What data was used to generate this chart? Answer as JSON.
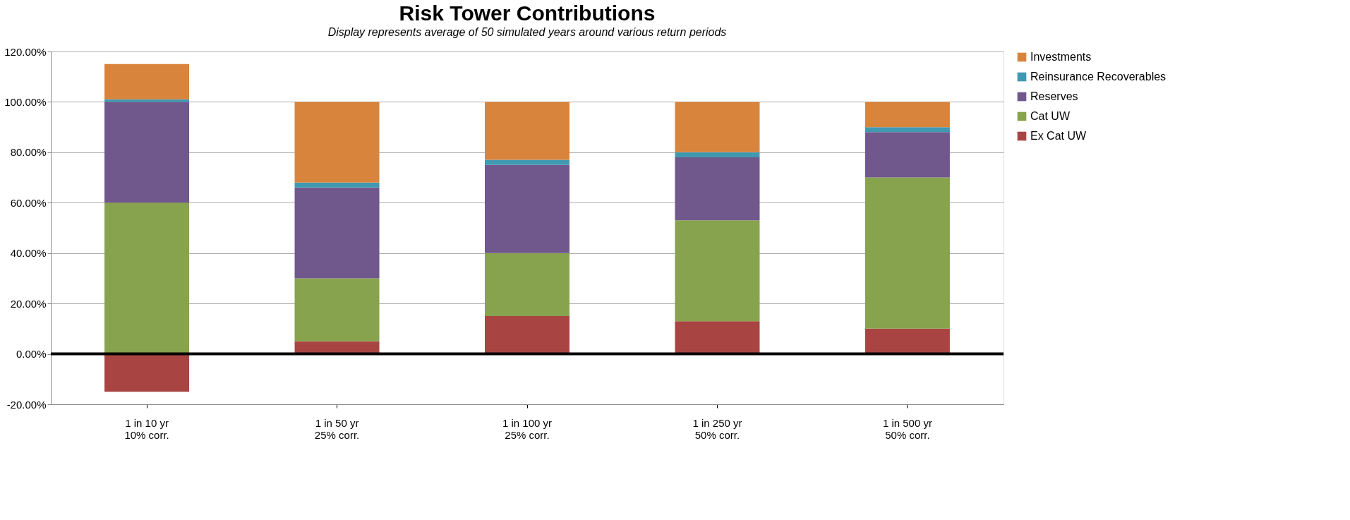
{
  "chart_data": {
    "type": "bar",
    "stacked": true,
    "title": "Risk Tower Contributions",
    "subtitle": "Display represents average of 50 simulated years around various return periods",
    "categories": [
      "1 in 10 yr\n10% corr.",
      "1 in 50 yr\n25% corr.",
      "1 in 100 yr\n25% corr.",
      "1 in 250 yr\n50% corr.",
      "1 in 500 yr\n50% corr."
    ],
    "series": [
      {
        "name": "Ex Cat UW",
        "color": "#a84543",
        "values": [
          -15,
          5,
          15,
          13,
          10
        ]
      },
      {
        "name": "Cat UW",
        "color": "#87a34d",
        "values": [
          60,
          25,
          25,
          40,
          60
        ]
      },
      {
        "name": "Reserves",
        "color": "#70578c",
        "values": [
          40,
          36,
          35,
          25,
          18
        ]
      },
      {
        "name": "Reinsurance Recoverables",
        "color": "#4099b0",
        "values": [
          1,
          2,
          2,
          2,
          2
        ]
      },
      {
        "name": "Investments",
        "color": "#d9843d",
        "values": [
          14,
          32,
          23,
          20,
          10
        ]
      }
    ],
    "ylim": [
      -20,
      120
    ],
    "yticks": [
      {
        "value": -20,
        "label": "-20.00%"
      },
      {
        "value": 0,
        "label": "0.00%"
      },
      {
        "value": 20,
        "label": "20.00%"
      },
      {
        "value": 40,
        "label": "40.00%"
      },
      {
        "value": 60,
        "label": "60.00%"
      },
      {
        "value": 80,
        "label": "80.00%"
      },
      {
        "value": 100,
        "label": "100.00%"
      },
      {
        "value": 120,
        "label": "120.00%"
      }
    ],
    "ref_lines": [
      {
        "axis": "y",
        "value": 0,
        "color": "#000000"
      }
    ],
    "grid": "y",
    "legend": "right"
  }
}
